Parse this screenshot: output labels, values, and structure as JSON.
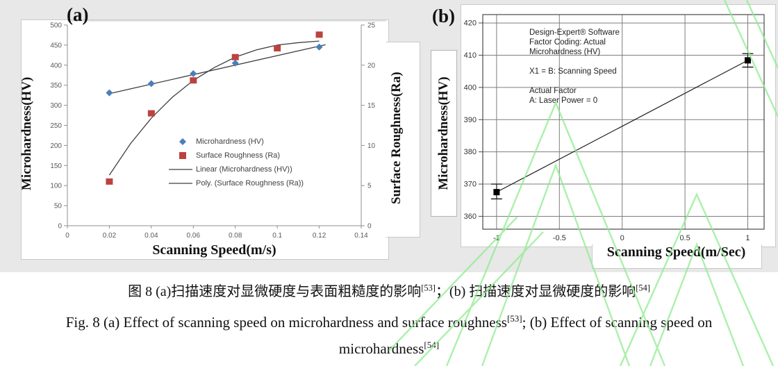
{
  "page": {
    "panel_a": "(a)",
    "panel_b": "(b)"
  },
  "colors": {
    "background_strip": "#e8e8e8",
    "watermark": "#8fec8f",
    "microhardness_blue": "#4a7ebb",
    "roughness_red": "#bc4240",
    "trend_line": "#3f3f3f",
    "axis_gray": "#8f8f8f",
    "grid_gray": "#7d7d7d"
  },
  "chart_data": [
    {
      "id": "a",
      "type": "scatter",
      "panel": "(a)",
      "xlabel": "Scanning Speed(m/s)",
      "ylabel_left": "Microhardness(HV)",
      "ylabel_right": "Surface Roughness(Ra)",
      "xlim": [
        0,
        0.14
      ],
      "ylim_left": [
        0,
        500
      ],
      "ylim_right": [
        0,
        25
      ],
      "grid": false,
      "legend_position": "center",
      "xticks": {
        "values": [
          0,
          0.02,
          0.04,
          0.06,
          0.08,
          0.1,
          0.12,
          0.14
        ],
        "labels": [
          "0",
          "0.02",
          "0.04",
          "0.06",
          "0.08",
          "0.1",
          "0.12",
          "0.14"
        ]
      },
      "yticks_left": {
        "values": [
          0,
          50,
          100,
          150,
          200,
          250,
          300,
          350,
          400,
          450,
          500
        ],
        "labels": [
          "0",
          "50",
          "100",
          "150",
          "200",
          "250",
          "300",
          "350",
          "400",
          "450",
          "500"
        ]
      },
      "yticks_right": {
        "values": [
          0,
          5,
          10,
          15,
          20,
          25
        ],
        "labels": [
          "0",
          "5",
          "10",
          "15",
          "20",
          "25"
        ]
      },
      "series": [
        {
          "name": "Microhardness (HV)",
          "axis": "left",
          "kind": "markers",
          "marker": "diamond",
          "color": "#4a7ebb",
          "x": [
            0.02,
            0.04,
            0.06,
            0.08,
            0.12
          ],
          "y": [
            331,
            354,
            379,
            405,
            445
          ]
        },
        {
          "name": "Surface Roughness (Ra)",
          "axis": "right",
          "kind": "markers",
          "marker": "square",
          "color": "#bc4240",
          "x": [
            0.02,
            0.04,
            0.06,
            0.08,
            0.1,
            0.12
          ],
          "y": [
            5.5,
            14.0,
            18.1,
            21.0,
            22.1,
            23.8
          ]
        },
        {
          "name": "Linear (Microhardness (HV))",
          "axis": "left",
          "kind": "line",
          "color": "#3f3f3f",
          "x": [
            0.02,
            0.123
          ],
          "y": [
            329,
            451
          ]
        },
        {
          "name": "Poly. (Surface Roughness (Ra))",
          "axis": "right",
          "kind": "line",
          "color": "#3f3f3f",
          "x": [
            0.02,
            0.03,
            0.04,
            0.05,
            0.06,
            0.07,
            0.08,
            0.09,
            0.1,
            0.11,
            0.12
          ],
          "y": [
            6.3,
            10.2,
            13.4,
            16.0,
            18.1,
            19.7,
            21.0,
            21.9,
            22.5,
            22.8,
            23.0
          ]
        }
      ],
      "legend": [
        {
          "swatch": "diamond",
          "color": "#4a7ebb",
          "label": "Microhardness (HV)"
        },
        {
          "swatch": "square",
          "color": "#bc4240",
          "label": "Surface Roughness (Ra)"
        },
        {
          "swatch": "line",
          "color": "#3f3f3f",
          "label": "Linear (Microhardness (HV))"
        },
        {
          "swatch": "line",
          "color": "#3f3f3f",
          "label": "Poly. (Surface Roughness (Ra))"
        }
      ]
    },
    {
      "id": "b",
      "type": "line",
      "panel": "(b)",
      "xlabel": "Scanning Speed(m/Sec)",
      "ylabel": "Microhardness(HV)",
      "xlim": [
        -1.11,
        1.13
      ],
      "ylim": [
        356,
        422.6
      ],
      "grid": true,
      "xticks": {
        "values": [
          -1,
          -0.5,
          0,
          0.5,
          1
        ],
        "labels": [
          "-1",
          "-0.5",
          "0",
          "0.5",
          "1"
        ]
      },
      "yticks": {
        "values": [
          360,
          370,
          380,
          390,
          400,
          410,
          420
        ],
        "labels": [
          "360",
          "370",
          "380",
          "390",
          "400",
          "410",
          "420"
        ]
      },
      "annotation": "Design-Expert® Software\nFactor Coding: Actual\nMicrohardness (HV)\n\nX1 = B: Scanning Speed\n\nActual Factor\nA: Laser Power = 0",
      "points": [
        {
          "x": -1,
          "y": 367.5,
          "err_low": 365.4,
          "err_high": 370.0
        },
        {
          "x": 1,
          "y": 408.4,
          "err_low": 406.3,
          "err_high": 410.5
        }
      ],
      "line": {
        "x": [
          -1,
          1
        ],
        "y": [
          367.5,
          408.4
        ]
      }
    }
  ],
  "caption": {
    "zh": {
      "text1": "图 8 (a)扫描速度对显微硬度与表面粗糙度的影响",
      "sup1": "[53]",
      "text2": "；(b) 扫描速度对显微硬度的影响",
      "sup2": "[54]"
    },
    "en_line1": {
      "text1": "Fig. 8 (a) Effect of scanning speed on microhardness and surface roughness",
      "sup1": "[53]",
      "text2": "; (b) Effect of scanning speed on"
    },
    "en_line2": {
      "text1": "microhardness",
      "sup1": "[54]"
    }
  }
}
